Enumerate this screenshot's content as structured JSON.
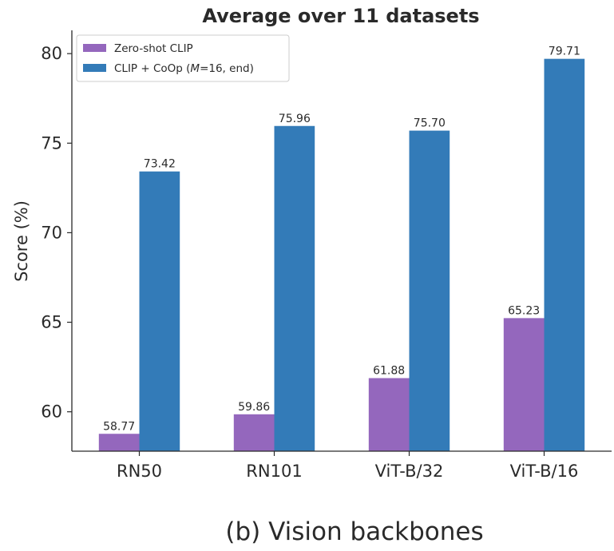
{
  "chart_data": {
    "type": "bar",
    "title": "Average over 11 datasets",
    "ylabel": "Score (%)",
    "xlabel": "",
    "categories": [
      "RN50",
      "RN101",
      "ViT-B/32",
      "ViT-B/16"
    ],
    "series": [
      {
        "name": "Zero-shot CLIP",
        "color": "#9467bd",
        "values": [
          58.77,
          59.86,
          61.88,
          65.23
        ]
      },
      {
        "name": "CLIP + CoOp (M=16, end)",
        "color": "#337bb8",
        "values": [
          73.42,
          75.96,
          75.7,
          79.71
        ]
      }
    ],
    "data_labels": [
      [
        "58.77",
        "59.86",
        "61.88",
        "65.23"
      ],
      [
        "73.42",
        "75.96",
        "75.70",
        "79.71"
      ]
    ],
    "ylim": [
      57.8,
      81.3
    ],
    "yticks": [
      60,
      65,
      70,
      75,
      80
    ],
    "grid": false,
    "legend_position": "top-left"
  },
  "legend": {
    "zero_shot": "Zero-shot CLIP",
    "coop_prefix": "CLIP + CoOp (",
    "coop_m": "M",
    "coop_suffix": "=16, end)"
  },
  "caption": "(b) Vision backbones"
}
